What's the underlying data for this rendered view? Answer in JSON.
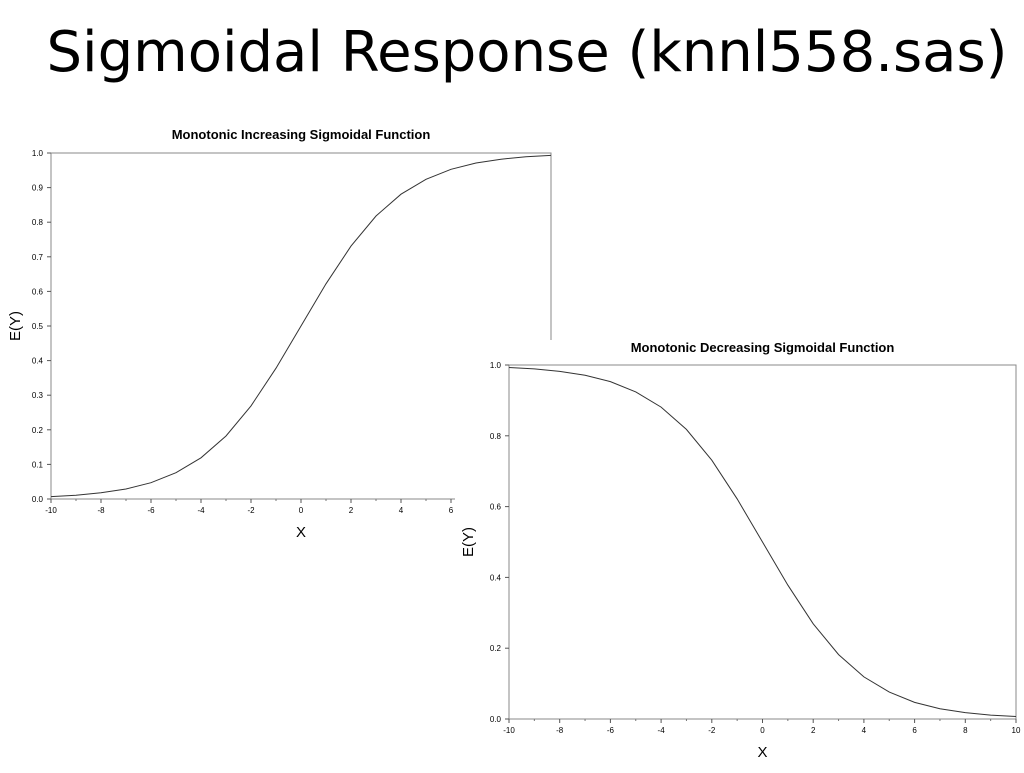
{
  "slide": {
    "title": "Sigmoidal Response (knnl558.sas)"
  },
  "chart_data": [
    {
      "type": "line",
      "title": "Monotonic Increasing Sigmoidal Function",
      "xlabel": "X",
      "ylabel": "E(Y)",
      "xlim": [
        -10,
        10
      ],
      "ylim": [
        0,
        1
      ],
      "xticks": [
        "-10",
        "-8",
        "-6",
        "-4",
        "-2",
        "0",
        "2",
        "4",
        "6"
      ],
      "yticks": [
        "0.0",
        "0.1",
        "0.2",
        "0.3",
        "0.4",
        "0.5",
        "0.6",
        "0.7",
        "0.8",
        "0.9",
        "1.0"
      ],
      "x": [
        -10,
        -9,
        -8,
        -7,
        -6,
        -5,
        -4,
        -3,
        -2,
        -1,
        0,
        1,
        2,
        3,
        4,
        5,
        6,
        7,
        8,
        9,
        10
      ],
      "series": [
        {
          "values": [
            0.007,
            0.011,
            0.018,
            0.029,
            0.047,
            0.076,
            0.119,
            0.182,
            0.269,
            0.378,
            0.5,
            0.622,
            0.731,
            0.818,
            0.881,
            0.924,
            0.953,
            0.971,
            0.982,
            0.989,
            0.993
          ]
        }
      ],
      "grid": false
    },
    {
      "type": "line",
      "title": "Monotonic Decreasing Sigmoidal Function",
      "xlabel": "X",
      "ylabel": "E(Y)",
      "xlim": [
        -10,
        10
      ],
      "ylim": [
        0,
        1
      ],
      "xticks": [
        "-10",
        "-8",
        "-6",
        "-4",
        "-2",
        "0",
        "2",
        "4",
        "6",
        "8",
        "10"
      ],
      "yticks": [
        "0.0",
        "0.2",
        "0.4",
        "0.6",
        "0.8",
        "1.0"
      ],
      "x": [
        -10,
        -9,
        -8,
        -7,
        -6,
        -5,
        -4,
        -3,
        -2,
        -1,
        0,
        1,
        2,
        3,
        4,
        5,
        6,
        7,
        8,
        9,
        10
      ],
      "series": [
        {
          "values": [
            0.993,
            0.989,
            0.982,
            0.971,
            0.953,
            0.924,
            0.881,
            0.818,
            0.731,
            0.622,
            0.5,
            0.378,
            0.269,
            0.182,
            0.119,
            0.076,
            0.047,
            0.029,
            0.018,
            0.011,
            0.007
          ]
        }
      ],
      "grid": false
    }
  ]
}
